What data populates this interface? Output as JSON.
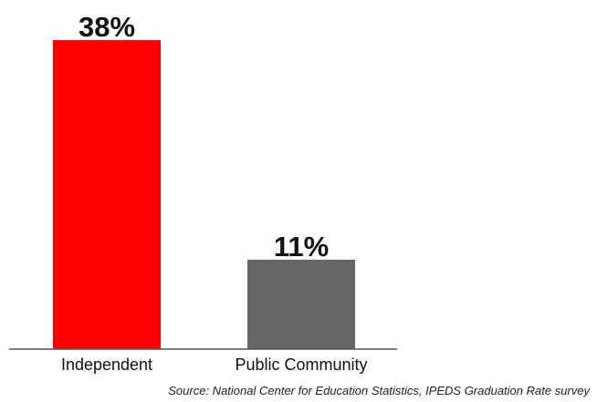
{
  "chart_data": {
    "type": "bar",
    "categories": [
      "Independent",
      "Public Community"
    ],
    "values": [
      38,
      11
    ],
    "value_labels": [
      "38%",
      "11%"
    ],
    "bar_colors": [
      "#ff0000",
      "#666666"
    ],
    "title": "",
    "xlabel": "",
    "ylabel": "",
    "ylim": [
      0,
      38
    ],
    "grid": false,
    "legend": "none"
  },
  "source": "Source: National Center for Education Statistics, IPEDS Graduation Rate survey"
}
